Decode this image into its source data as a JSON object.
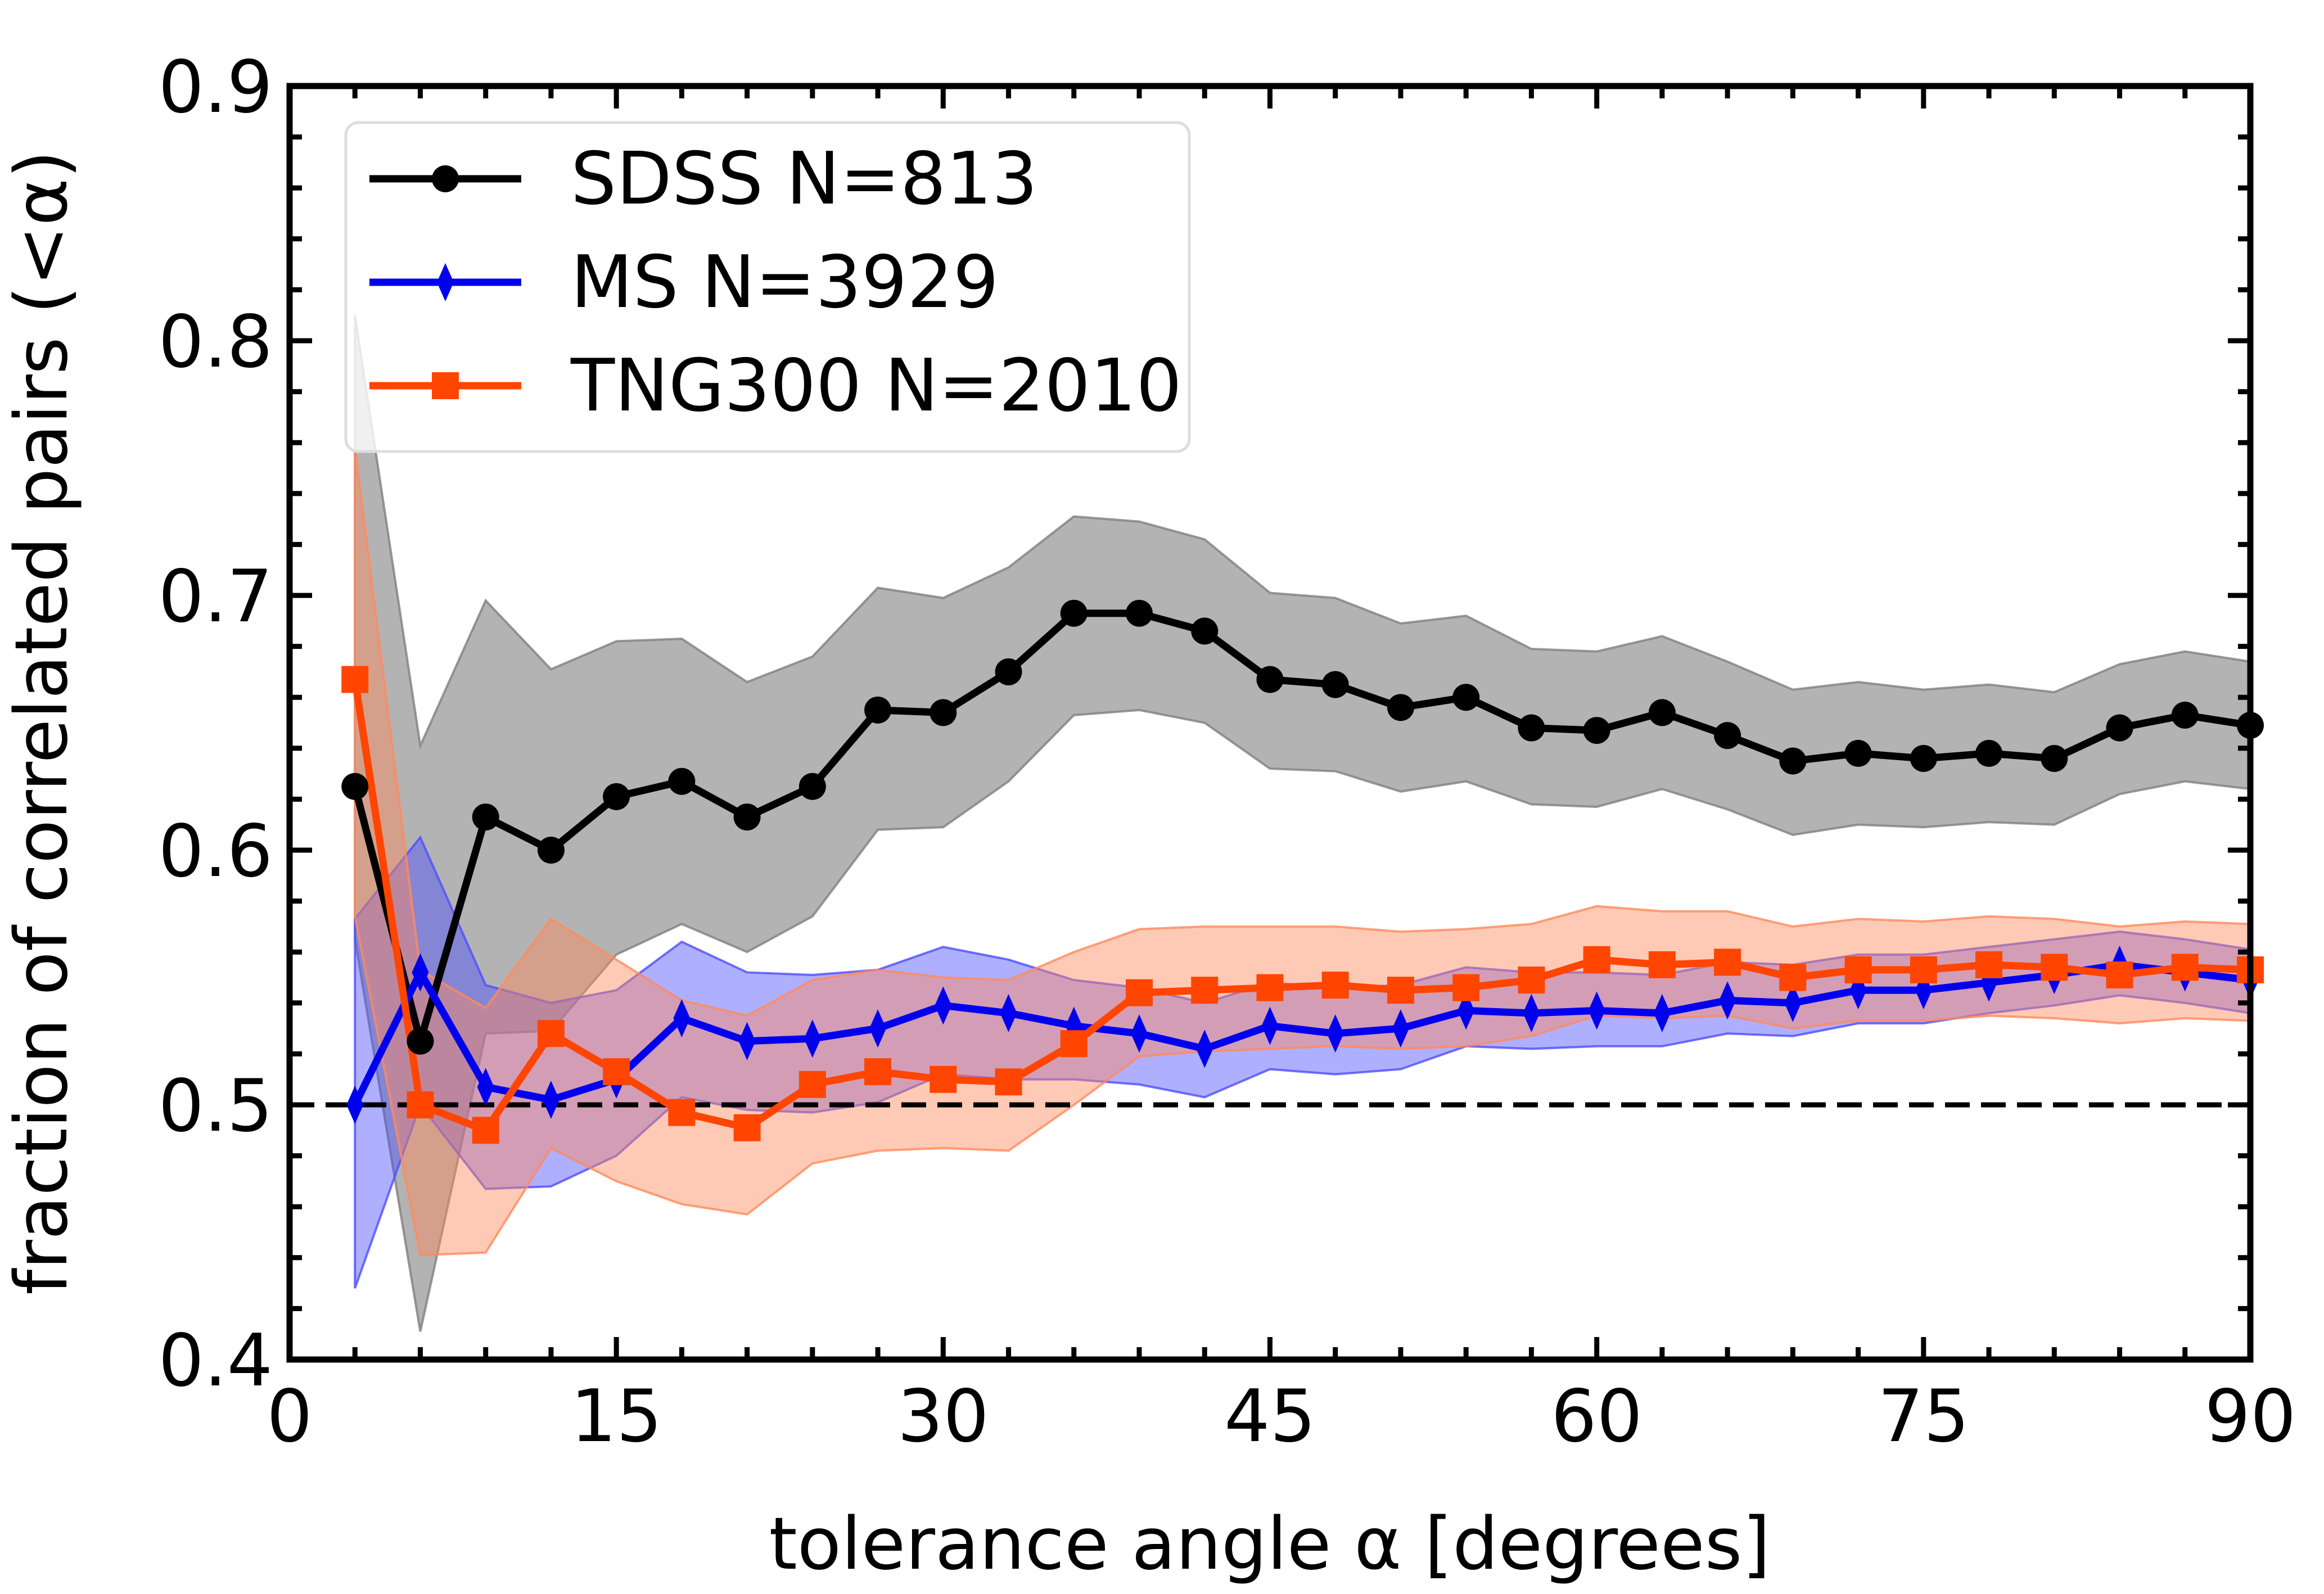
{
  "chart_data": {
    "type": "line",
    "title": "",
    "xlabel": "tolerance angle α [degrees]",
    "ylabel": "fraction of correlated pairs (<α)",
    "xlim": [
      0,
      90
    ],
    "ylim": [
      0.4,
      0.9
    ],
    "xticks": [
      0,
      15,
      30,
      45,
      60,
      75,
      90
    ],
    "xtick_labels": [
      "0",
      "15",
      "30",
      "45",
      "60",
      "75",
      "90"
    ],
    "xminor_step": 3,
    "yticks": [
      0.4,
      0.5,
      0.6,
      0.7,
      0.8,
      0.9
    ],
    "ytick_labels": [
      "0.4",
      "0.5",
      "0.6",
      "0.7",
      "0.8",
      "0.9"
    ],
    "yminor_step": 0.02,
    "grid": false,
    "legend_position": "top-left",
    "reference_line": {
      "y": 0.5,
      "style": "dashed",
      "color": "#000000"
    },
    "x": [
      3,
      6,
      9,
      12,
      15,
      18,
      21,
      24,
      27,
      30,
      33,
      36,
      39,
      42,
      45,
      48,
      51,
      54,
      57,
      60,
      63,
      66,
      69,
      72,
      75,
      78,
      81,
      84,
      87,
      90
    ],
    "series": [
      {
        "name": "SDSS N=813",
        "color": "#000000",
        "band_color": "#808080",
        "marker": "circle",
        "values": [
          0.625,
          0.525,
          0.613,
          0.6,
          0.621,
          0.627,
          0.613,
          0.625,
          0.655,
          0.654,
          0.67,
          0.693,
          0.693,
          0.686,
          0.667,
          0.665,
          0.656,
          0.66,
          0.648,
          0.647,
          0.654,
          0.645,
          0.635,
          0.638,
          0.636,
          0.638,
          0.636,
          0.648,
          0.653,
          0.649
        ],
        "upper": [
          0.81,
          0.641,
          0.698,
          0.671,
          0.682,
          0.683,
          0.666,
          0.676,
          0.703,
          0.699,
          0.711,
          0.731,
          0.729,
          0.722,
          0.701,
          0.699,
          0.689,
          0.692,
          0.679,
          0.678,
          0.684,
          0.674,
          0.663,
          0.666,
          0.663,
          0.665,
          0.662,
          0.673,
          0.678,
          0.674
        ],
        "lower": [
          0.565,
          0.411,
          0.528,
          0.529,
          0.559,
          0.571,
          0.56,
          0.574,
          0.608,
          0.609,
          0.627,
          0.653,
          0.655,
          0.65,
          0.632,
          0.631,
          0.623,
          0.627,
          0.618,
          0.617,
          0.624,
          0.616,
          0.606,
          0.61,
          0.609,
          0.611,
          0.61,
          0.622,
          0.627,
          0.624
        ]
      },
      {
        "name": "MS N=3929",
        "color": "#0000ee",
        "band_color": "#4d4dff",
        "marker": "thin-diamond",
        "values": [
          0.5,
          0.552,
          0.507,
          0.502,
          0.51,
          0.534,
          0.525,
          0.526,
          0.53,
          0.539,
          0.536,
          0.531,
          0.528,
          0.522,
          0.531,
          0.528,
          0.53,
          0.537,
          0.536,
          0.537,
          0.536,
          0.541,
          0.54,
          0.545,
          0.545,
          0.548,
          0.551,
          0.555,
          0.552,
          0.549
        ],
        "upper": [
          0.573,
          0.605,
          0.547,
          0.54,
          0.545,
          0.564,
          0.552,
          0.551,
          0.553,
          0.562,
          0.557,
          0.549,
          0.546,
          0.54,
          0.548,
          0.546,
          0.547,
          0.554,
          0.552,
          0.552,
          0.551,
          0.556,
          0.555,
          0.559,
          0.559,
          0.562,
          0.565,
          0.568,
          0.565,
          0.561
        ],
        "lower": [
          0.428,
          0.5,
          0.467,
          0.468,
          0.48,
          0.503,
          0.498,
          0.497,
          0.501,
          0.512,
          0.51,
          0.51,
          0.508,
          0.503,
          0.514,
          0.512,
          0.514,
          0.523,
          0.522,
          0.523,
          0.523,
          0.528,
          0.527,
          0.532,
          0.532,
          0.536,
          0.539,
          0.543,
          0.54,
          0.536
        ]
      },
      {
        "name": "TNG300 N=2010",
        "color": "#ff4500",
        "band_color": "#ff8a5c",
        "marker": "square",
        "values": [
          0.667,
          0.5,
          0.49,
          0.528,
          0.513,
          0.497,
          0.491,
          0.508,
          0.513,
          0.51,
          0.509,
          0.524,
          0.544,
          0.545,
          0.546,
          0.547,
          0.545,
          0.546,
          0.549,
          0.557,
          0.555,
          0.556,
          0.55,
          0.553,
          0.553,
          0.555,
          0.554,
          0.551,
          0.554,
          0.553
        ],
        "upper": [
          0.758,
          0.553,
          0.538,
          0.573,
          0.557,
          0.541,
          0.535,
          0.549,
          0.553,
          0.55,
          0.549,
          0.56,
          0.569,
          0.57,
          0.57,
          0.57,
          0.568,
          0.569,
          0.571,
          0.578,
          0.576,
          0.576,
          0.57,
          0.573,
          0.572,
          0.574,
          0.573,
          0.57,
          0.572,
          0.571
        ],
        "lower": [
          0.574,
          0.441,
          0.442,
          0.483,
          0.47,
          0.461,
          0.457,
          0.477,
          0.482,
          0.483,
          0.482,
          0.5,
          0.519,
          0.521,
          0.522,
          0.523,
          0.522,
          0.523,
          0.527,
          0.535,
          0.534,
          0.535,
          0.53,
          0.533,
          0.533,
          0.535,
          0.534,
          0.532,
          0.534,
          0.533
        ]
      }
    ]
  }
}
